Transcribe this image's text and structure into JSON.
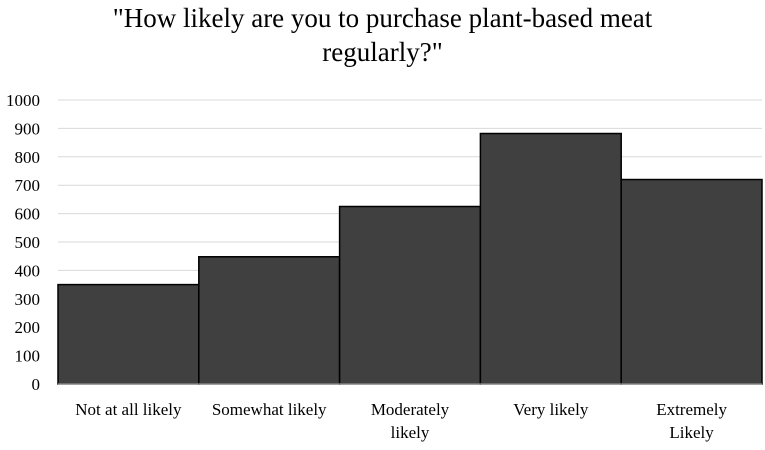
{
  "chart_data": {
    "type": "bar",
    "title_lines": [
      "\"How likely are you to purchase plant-based meat",
      "regularly?\""
    ],
    "categories": [
      [
        "Not at all likely"
      ],
      [
        "Somewhat likely"
      ],
      [
        "Moderately",
        "likely"
      ],
      [
        "Very likely"
      ],
      [
        "Extremely",
        "Likely"
      ]
    ],
    "values": [
      350,
      448,
      625,
      882,
      720
    ],
    "yticks": [
      "0",
      "100",
      "200",
      "300",
      "400",
      "500",
      "600",
      "700",
      "800",
      "900",
      "1000"
    ],
    "ylim": [
      0,
      1000
    ],
    "grid": true,
    "legend": "none",
    "colors": {
      "bar": "#404040",
      "bar_stroke": "#000000",
      "grid": "#d9d9d9",
      "axis": "#bfbfbf"
    }
  }
}
